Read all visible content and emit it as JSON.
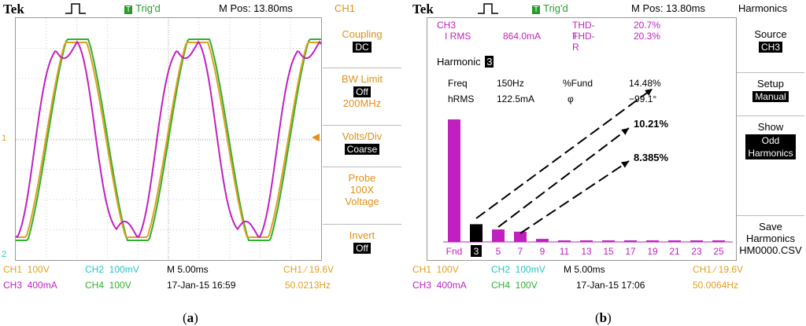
{
  "panel_a": {
    "tek": "Tek",
    "trig": "Trig'd",
    "trig_t": "T",
    "mpos": "M Pos: 13.80ms",
    "menu_title": "CH1",
    "coupling_label": "Coupling",
    "coupling_value": "DC",
    "bw_label": "BW Limit",
    "bw_value": "Off",
    "bw_sub": "200MHz",
    "vdiv_label": "Volts/Div",
    "vdiv_value": "Coarse",
    "probe_label": "Probe",
    "probe_sub1": "100X",
    "probe_sub2": "Voltage",
    "invert_label": "Invert",
    "invert_value": "Off",
    "ch1": "CH1  100V",
    "ch2": "CH2  100mV",
    "time": "M 5.00ms",
    "ch3": "CH3  400mA",
    "ch4": "CH4  100V",
    "date": "17-Jan-15 16:59",
    "trig_level": "CH1 ∕ 19.6V",
    "freq": "50.0213Hz",
    "marker_1": "1",
    "marker_2": "2"
  },
  "panel_b": {
    "tek": "Tek",
    "trig": "Trig'd",
    "trig_t": "T",
    "mpos": "M Pos: 13.80ms",
    "menu_title": "Harmonics",
    "source_label": "Source",
    "source_value": "CH3",
    "setup_label": "Setup",
    "setup_value": "Manual",
    "show_label": "Show",
    "show_value1": "Odd",
    "show_value2": "Harmonics",
    "save_label1": "Save",
    "save_label2": "Harmonics",
    "save_file": "HM0000.CSV",
    "info_ch": "CH3",
    "info_irms": "I RMS",
    "info_irms_val": "864.0mA",
    "thdf": "THD-F",
    "thdf_val": "20.7%",
    "thdr": "THD-R",
    "thdr_val": "20.3%",
    "harmonic_label": "Harmonic",
    "harmonic_num": "3",
    "freq_label": "Freq",
    "freq_val": "150Hz",
    "fund_label": "%Fund",
    "fund_val": "14.48%",
    "hrms_label": "hRMS",
    "hrms_val": "122.5mA",
    "phi_label": "φ",
    "phi_val": "−99.1°",
    "annot1": "10.21%",
    "annot2": "8.385%",
    "ch1": "CH1  100V",
    "ch2": "CH2  100mV",
    "time": "M 5.00ms",
    "ch3": "CH3  400mA",
    "ch4": "CH4  100V",
    "date": "17-Jan-15 17:06",
    "trig_level": "CH1 ∕ 19.6V",
    "freq": "50.0064Hz"
  },
  "chart_data": {
    "type": "bar",
    "categories": [
      "Fnd",
      "3",
      "5",
      "7",
      "9",
      "11",
      "13",
      "15",
      "17",
      "19",
      "21",
      "23",
      "25"
    ],
    "values": [
      100,
      14.48,
      10.21,
      8.385,
      2.5,
      1.2,
      1.0,
      0.9,
      0.8,
      0.7,
      0.6,
      0.6,
      0.5
    ],
    "ylabel": "%Fund",
    "ylim": [
      0,
      100
    ],
    "highlight": "3",
    "bar_color": "#c020c0",
    "highlight_color": "#000000"
  },
  "captions": {
    "a": "(a)",
    "b": "(b)"
  },
  "colors": {
    "ch1": "#e0a020",
    "ch2": "#23c4c4",
    "ch3": "#c020c0",
    "ch4": "#30b030",
    "menu": "#e0901a"
  }
}
